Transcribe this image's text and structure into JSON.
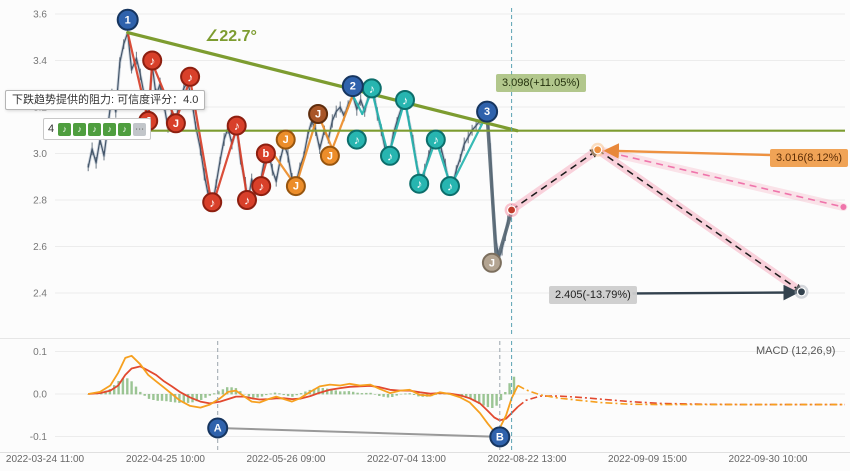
{
  "axes": {
    "x_labels": [
      "2022-03-24 11:00",
      "2022-04-25 10:00",
      "2022-05-26 09:00",
      "2022-07-04 13:00",
      "2022-08-22 13:00",
      "2022-09-09 15:00",
      "2022-09-30 10:00"
    ],
    "y_labels_main": [
      "3.6",
      "3.4",
      "3.2",
      "3.0",
      "2.8",
      "2.6",
      "2.4"
    ],
    "y_values_main": [
      3.6,
      3.4,
      3.2,
      3.0,
      2.8,
      2.6,
      2.4
    ],
    "y_labels_macd": [
      "0.1",
      "0.0",
      "-0.1"
    ],
    "y_values_macd": [
      0.1,
      0.0,
      -0.1
    ]
  },
  "annotations": {
    "tooltip": "下跌趋势提供的阻力: 可信度评分：4.0",
    "angle": "∠22.7°",
    "resistance_label": "3.098(+11.05%)",
    "orange_label": "3.016(8.12%)",
    "gray_label": "2.405(-13.79%)",
    "macd_title": "MACD (12,26,9)",
    "legend_count": "4",
    "legend_icon": "♪",
    "legend_more": "⋯"
  },
  "chart_data": {
    "type": "line",
    "panels": [
      "price",
      "macd"
    ],
    "x_range": [
      "2022-03-24 11:00",
      "2022-09-30 10:00"
    ],
    "palette": {
      "blue": {
        "fill": "#2f62ac",
        "ring": "#16355f"
      },
      "red": {
        "fill": "#d8402a",
        "ring": "#8d1f10"
      },
      "orange": {
        "fill": "#ec8d2a",
        "ring": "#97550e"
      },
      "brown": {
        "fill": "#a85527",
        "ring": "#5f2d0d"
      },
      "teal": {
        "fill": "#27b5b0",
        "ring": "#0c6e6b"
      },
      "tan": {
        "fill": "#b3a491",
        "ring": "#7c6f5e"
      },
      "zig": {
        "red": "#d8402a",
        "orange": "#ec8d2a",
        "teal": "#27b5b0",
        "gray": "#5a6a76"
      },
      "green_line": "#7d9c30",
      "dif": "#f6a01f",
      "dea": "#e2492f",
      "hist": "#5aa04e"
    },
    "main": {
      "ylim": [
        2.3,
        3.65
      ],
      "resistance": 3.098,
      "trend_line": [
        [
          0.092,
          3.52
        ],
        [
          0.585,
          3.098
        ]
      ],
      "vline": 0.578,
      "price_line": [
        [
          0.042,
          2.94
        ],
        [
          0.047,
          3.02
        ],
        [
          0.052,
          2.96
        ],
        [
          0.057,
          3.06
        ],
        [
          0.062,
          2.99
        ],
        [
          0.067,
          3.12
        ],
        [
          0.072,
          3.25
        ],
        [
          0.077,
          3.18
        ],
        [
          0.082,
          3.39
        ],
        [
          0.087,
          3.47
        ],
        [
          0.092,
          3.52
        ],
        [
          0.097,
          3.36
        ],
        [
          0.103,
          3.41
        ],
        [
          0.108,
          3.34
        ],
        [
          0.113,
          3.25
        ],
        [
          0.118,
          3.15
        ],
        [
          0.123,
          3.38
        ],
        [
          0.128,
          3.25
        ],
        [
          0.133,
          3.3
        ],
        [
          0.138,
          3.21
        ],
        [
          0.143,
          3.11
        ],
        [
          0.148,
          3.18
        ],
        [
          0.153,
          3.14
        ],
        [
          0.158,
          3.23
        ],
        [
          0.163,
          3.28
        ],
        [
          0.168,
          3.31
        ],
        [
          0.173,
          3.23
        ],
        [
          0.178,
          3.12
        ],
        [
          0.184,
          3.02
        ],
        [
          0.189,
          2.91
        ],
        [
          0.194,
          2.82
        ],
        [
          0.199,
          2.77
        ],
        [
          0.204,
          2.87
        ],
        [
          0.209,
          2.97
        ],
        [
          0.214,
          3.06
        ],
        [
          0.219,
          3.11
        ],
        [
          0.224,
          3.04
        ],
        [
          0.23,
          3.11
        ],
        [
          0.235,
          2.97
        ],
        [
          0.241,
          2.87
        ],
        [
          0.244,
          2.79
        ],
        [
          0.249,
          2.89
        ],
        [
          0.254,
          2.84
        ],
        [
          0.259,
          2.86
        ],
        [
          0.265,
          2.97
        ],
        [
          0.27,
          3.01
        ],
        [
          0.275,
          2.93
        ],
        [
          0.28,
          2.88
        ],
        [
          0.285,
          2.97
        ],
        [
          0.29,
          3.04
        ],
        [
          0.295,
          2.99
        ],
        [
          0.3,
          2.89
        ],
        [
          0.304,
          2.86
        ],
        [
          0.31,
          2.94
        ],
        [
          0.315,
          2.99
        ],
        [
          0.32,
          3.08
        ],
        [
          0.325,
          3.14
        ],
        [
          0.33,
          3.1
        ],
        [
          0.335,
          3.02
        ],
        [
          0.341,
          3.1
        ],
        [
          0.346,
          3.06
        ],
        [
          0.351,
          3.14
        ],
        [
          0.356,
          3.18
        ],
        [
          0.361,
          3.2
        ],
        [
          0.366,
          3.16
        ],
        [
          0.371,
          3.21
        ],
        [
          0.377,
          3.25
        ],
        [
          0.382,
          3.19
        ],
        [
          0.387,
          3.23
        ],
        [
          0.392,
          3.18
        ],
        [
          0.397,
          3.25
        ],
        [
          0.403,
          3.27
        ],
        [
          0.408,
          3.17
        ],
        [
          0.413,
          3.1
        ],
        [
          0.418,
          3.02
        ],
        [
          0.423,
          2.99
        ],
        [
          0.428,
          3.08
        ],
        [
          0.433,
          3.14
        ],
        [
          0.438,
          3.19
        ],
        [
          0.443,
          3.22
        ],
        [
          0.448,
          3.14
        ],
        [
          0.453,
          3.06
        ],
        [
          0.458,
          2.95
        ],
        [
          0.463,
          2.88
        ],
        [
          0.468,
          2.93
        ],
        [
          0.473,
          2.99
        ],
        [
          0.478,
          3.05
        ],
        [
          0.484,
          3.06
        ],
        [
          0.489,
          3.02
        ],
        [
          0.494,
          2.95
        ],
        [
          0.499,
          2.87
        ],
        [
          0.503,
          2.86
        ],
        [
          0.508,
          2.93
        ],
        [
          0.513,
          2.98
        ],
        [
          0.518,
          3.04
        ],
        [
          0.523,
          3.07
        ],
        [
          0.528,
          3.1
        ],
        [
          0.533,
          3.12
        ],
        [
          0.538,
          3.14
        ],
        [
          0.543,
          3.16
        ],
        [
          0.547,
          3.17
        ],
        [
          0.551,
          3.02
        ],
        [
          0.554,
          2.8
        ],
        [
          0.558,
          2.63
        ],
        [
          0.562,
          2.55
        ],
        [
          0.566,
          2.59
        ],
        [
          0.57,
          2.65
        ],
        [
          0.573,
          2.71
        ],
        [
          0.578,
          2.75
        ]
      ],
      "zigzag": [
        [
          0.092,
          3.52,
          "red"
        ],
        [
          0.118,
          3.14,
          "red"
        ],
        [
          0.123,
          3.39,
          "red"
        ],
        [
          0.153,
          3.14,
          "red"
        ],
        [
          0.171,
          3.32,
          "red"
        ],
        [
          0.199,
          2.77,
          "red"
        ],
        [
          0.23,
          3.11,
          "red"
        ],
        [
          0.244,
          2.79,
          "red"
        ],
        [
          0.259,
          2.86,
          "red"
        ],
        [
          0.272,
          3.02,
          "orange"
        ],
        [
          0.305,
          2.86,
          "orange"
        ],
        [
          0.333,
          3.17,
          "orange"
        ],
        [
          0.351,
          3.02,
          "orange"
        ],
        [
          0.377,
          3.25,
          "teal"
        ],
        [
          0.389,
          3.17,
          "teal"
        ],
        [
          0.401,
          3.27,
          "teal"
        ],
        [
          0.422,
          2.99,
          "teal"
        ],
        [
          0.443,
          3.23,
          "teal"
        ],
        [
          0.462,
          2.87,
          "teal"
        ],
        [
          0.482,
          3.06,
          "teal"
        ],
        [
          0.501,
          2.86,
          "teal"
        ],
        [
          0.547,
          3.17,
          "gray"
        ],
        [
          0.559,
          2.53,
          "gray"
        ],
        [
          0.578,
          2.75,
          "gray"
        ]
      ],
      "markers": [
        {
          "f": 0.118,
          "p": 3.14,
          "g": "J",
          "c": "red"
        },
        {
          "f": 0.123,
          "p": 3.4,
          "g": "♪",
          "c": "red"
        },
        {
          "f": 0.153,
          "p": 3.13,
          "g": "J",
          "c": "red"
        },
        {
          "f": 0.171,
          "p": 3.33,
          "g": "♪",
          "c": "red"
        },
        {
          "f": 0.199,
          "p": 2.79,
          "g": "♪",
          "c": "red"
        },
        {
          "f": 0.23,
          "p": 3.12,
          "g": "♪",
          "c": "red"
        },
        {
          "f": 0.243,
          "p": 2.8,
          "g": "♪",
          "c": "red"
        },
        {
          "f": 0.261,
          "p": 2.86,
          "g": "♪",
          "c": "red"
        },
        {
          "f": 0.267,
          "p": 3.0,
          "g": "b",
          "c": "red"
        },
        {
          "f": 0.292,
          "p": 3.06,
          "g": "J",
          "c": "orange"
        },
        {
          "f": 0.305,
          "p": 2.86,
          "g": "J",
          "c": "orange"
        },
        {
          "f": 0.333,
          "p": 3.17,
          "g": "J",
          "c": "brown"
        },
        {
          "f": 0.348,
          "p": 2.99,
          "g": "J",
          "c": "orange"
        },
        {
          "f": 0.382,
          "p": 3.06,
          "g": "♪",
          "c": "teal"
        },
        {
          "f": 0.401,
          "p": 3.28,
          "g": "♪",
          "c": "teal"
        },
        {
          "f": 0.424,
          "p": 2.99,
          "g": "♪",
          "c": "teal"
        },
        {
          "f": 0.443,
          "p": 3.23,
          "g": "♪",
          "c": "teal"
        },
        {
          "f": 0.461,
          "p": 2.87,
          "g": "♪",
          "c": "teal"
        },
        {
          "f": 0.482,
          "p": 3.06,
          "g": "♪",
          "c": "teal"
        },
        {
          "f": 0.5,
          "p": 2.86,
          "g": "♪",
          "c": "teal"
        },
        {
          "f": 0.553,
          "p": 2.53,
          "g": "J",
          "c": "tan"
        },
        {
          "f": 0.092,
          "p": 3.575,
          "g": "1",
          "c": "blue"
        },
        {
          "f": 0.377,
          "p": 3.29,
          "g": "2",
          "c": "blue"
        },
        {
          "f": 0.547,
          "p": 3.18,
          "g": "3",
          "c": "blue"
        }
      ],
      "proj": {
        "pivot": [
          0.578,
          2.757
        ],
        "mid": [
          0.687,
          3.016
        ],
        "down_end": [
          0.945,
          2.405
        ],
        "pink_end": [
          0.998,
          2.77
        ],
        "orange_line": [
          [
            0.7,
            3.012
          ],
          [
            1.0,
            2.985
          ]
        ],
        "dark_line": [
          [
            0.731,
            2.398
          ],
          [
            0.936,
            2.402
          ]
        ]
      }
    },
    "macd": {
      "ylim": [
        -0.12,
        0.12
      ],
      "split": 49,
      "x": [
        0.042,
        0.057,
        0.07,
        0.08,
        0.089,
        0.097,
        0.108,
        0.118,
        0.128,
        0.138,
        0.148,
        0.158,
        0.171,
        0.184,
        0.196,
        0.209,
        0.219,
        0.229,
        0.239,
        0.249,
        0.259,
        0.27,
        0.28,
        0.29,
        0.3,
        0.31,
        0.323,
        0.335,
        0.348,
        0.361,
        0.373,
        0.386,
        0.399,
        0.411,
        0.424,
        0.437,
        0.449,
        0.462,
        0.475,
        0.487,
        0.5,
        0.513,
        0.525,
        0.538,
        0.548,
        0.556,
        0.563,
        0.571,
        0.578,
        0.586,
        0.596,
        0.614,
        0.639,
        0.665,
        0.69,
        0.728,
        0.766,
        0.816,
        0.88,
        0.943,
        1.0
      ],
      "dif": [
        0.0,
        0.005,
        0.02,
        0.05,
        0.085,
        0.09,
        0.07,
        0.045,
        0.03,
        0.015,
        0.0,
        -0.015,
        -0.028,
        -0.032,
        -0.025,
        -0.01,
        0.005,
        0.008,
        -0.005,
        -0.018,
        -0.02,
        -0.012,
        -0.006,
        -0.012,
        -0.018,
        -0.01,
        0.005,
        0.018,
        0.022,
        0.02,
        0.024,
        0.02,
        0.022,
        0.012,
        0.002,
        0.008,
        0.01,
        -0.002,
        -0.004,
        0.004,
        0.0,
        -0.008,
        -0.02,
        -0.045,
        -0.07,
        -0.088,
        -0.08,
        -0.05,
        -0.01,
        0.02,
        0.01,
        -0.002,
        -0.01,
        -0.015,
        -0.02,
        -0.024,
        -0.025,
        -0.025,
        -0.025,
        -0.025,
        -0.025
      ],
      "dea": [
        0.0,
        0.002,
        0.008,
        0.02,
        0.045,
        0.06,
        0.065,
        0.055,
        0.045,
        0.03,
        0.018,
        0.005,
        -0.008,
        -0.018,
        -0.022,
        -0.018,
        -0.012,
        -0.006,
        -0.006,
        -0.01,
        -0.013,
        -0.012,
        -0.01,
        -0.01,
        -0.012,
        -0.011,
        -0.005,
        0.003,
        0.01,
        0.014,
        0.017,
        0.018,
        0.019,
        0.016,
        0.01,
        0.008,
        0.008,
        0.004,
        0.001,
        0.002,
        0.001,
        -0.003,
        -0.01,
        -0.022,
        -0.04,
        -0.055,
        -0.062,
        -0.058,
        -0.045,
        -0.03,
        -0.015,
        -0.005,
        -0.005,
        -0.008,
        -0.012,
        -0.018,
        -0.022,
        -0.024,
        -0.025,
        -0.025,
        -0.025
      ],
      "vlines": [
        {
          "f": 0.206,
          "c": "gray"
        },
        {
          "f": 0.563,
          "c": "gray"
        },
        {
          "f": 0.578,
          "c": "teal"
        }
      ],
      "ab": [
        {
          "f": 0.206,
          "v": -0.08,
          "label": "A"
        },
        {
          "f": 0.563,
          "v": -0.101,
          "label": "B"
        }
      ]
    }
  }
}
